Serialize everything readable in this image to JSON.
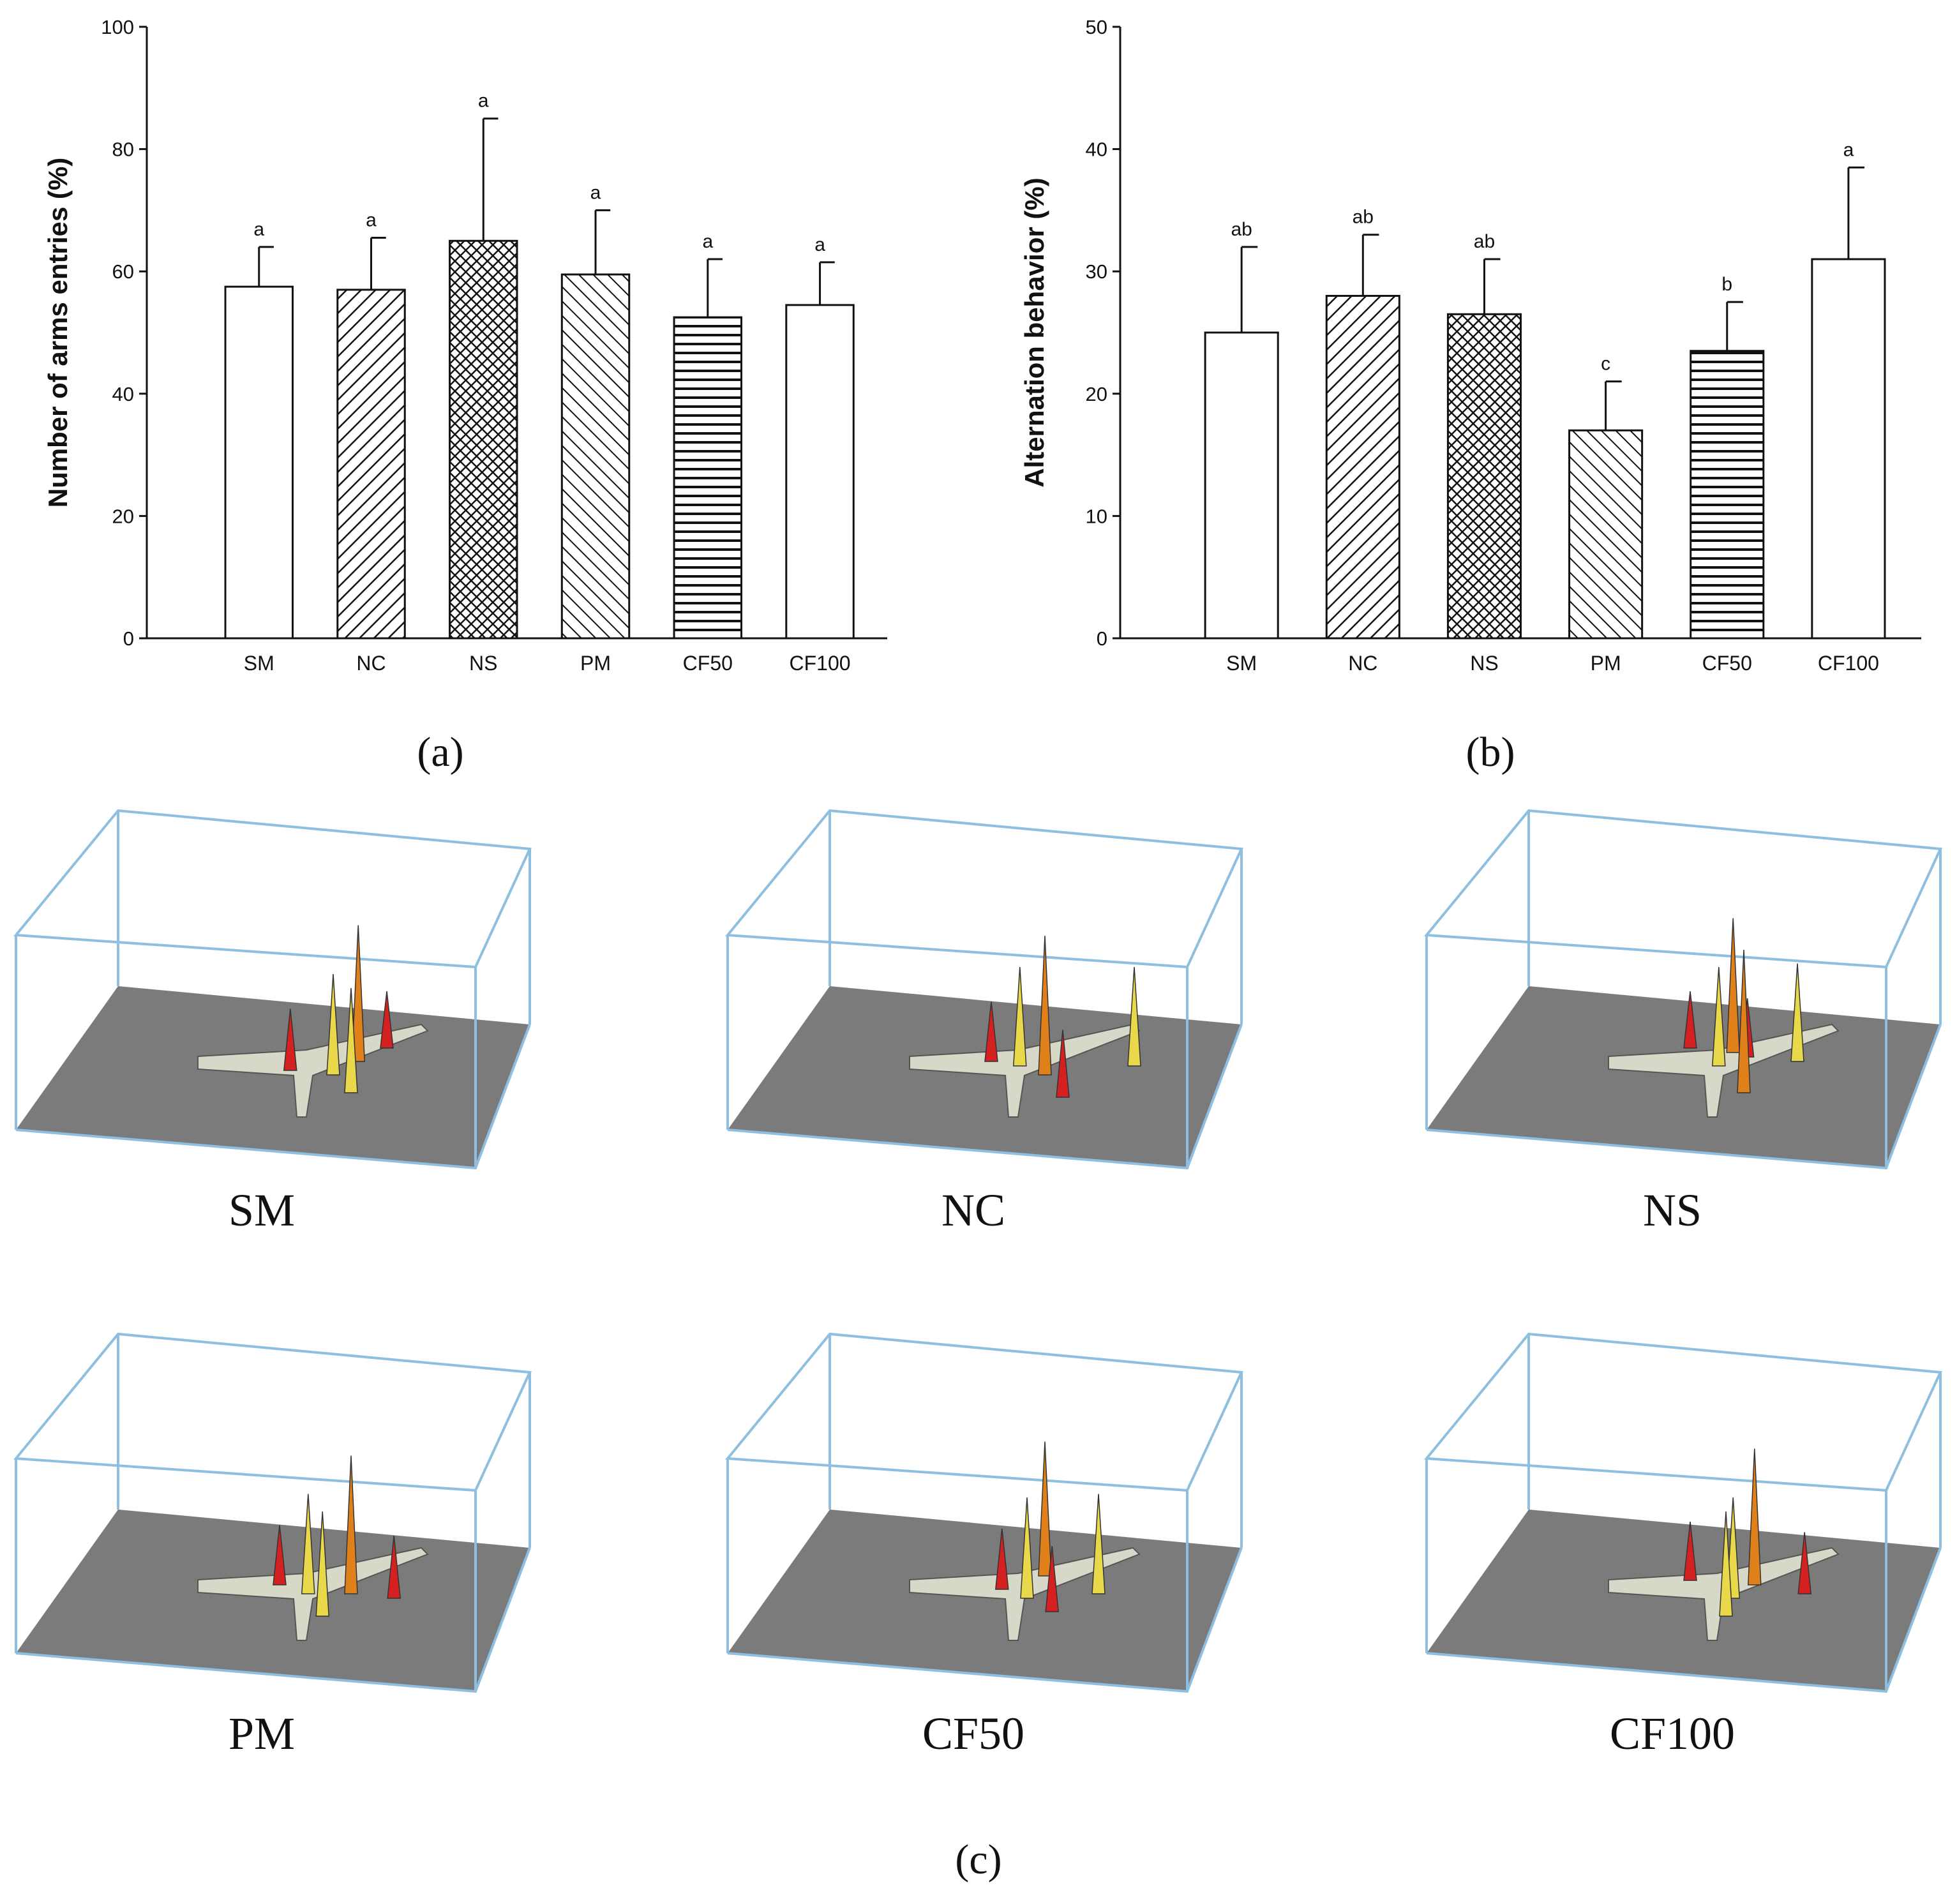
{
  "chart_data": [
    {
      "id": "a",
      "type": "bar",
      "panel_label": "(a)",
      "ylabel": "Number of arms entries (%)",
      "xlabel": "",
      "ylim": [
        0,
        100
      ],
      "yticks": [
        0,
        20,
        40,
        60,
        80,
        100
      ],
      "categories": [
        "SM",
        "NC",
        "NS",
        "PM",
        "CF50",
        "CF100"
      ],
      "values": [
        57.5,
        57,
        65,
        59.5,
        52.5,
        54.5
      ],
      "errors": [
        6.5,
        8.5,
        20,
        10.5,
        9.5,
        7
      ],
      "letters": [
        "a",
        "a",
        "a",
        "a",
        "a",
        "a"
      ],
      "patterns": [
        "open",
        "diag-up",
        "crosshatch",
        "diag-down",
        "horizontal",
        "open"
      ]
    },
    {
      "id": "b",
      "type": "bar",
      "panel_label": "(b)",
      "ylabel": "Alternation behavior (%)",
      "xlabel": "",
      "ylim": [
        0,
        50
      ],
      "yticks": [
        0,
        10,
        20,
        30,
        40,
        50
      ],
      "categories": [
        "SM",
        "NC",
        "NS",
        "PM",
        "CF50",
        "CF100"
      ],
      "values": [
        25,
        28,
        26.5,
        17,
        23.5,
        31
      ],
      "errors": [
        7,
        5,
        4.5,
        4,
        4,
        7.5
      ],
      "letters": [
        "ab",
        "ab",
        "ab",
        "c",
        "b",
        "a"
      ],
      "patterns": [
        "open",
        "diag-up",
        "crosshatch",
        "diag-down",
        "horizontal",
        "open"
      ]
    }
  ],
  "heatmaps": {
    "panel_label": "(c)",
    "items": [
      {
        "label": "SM",
        "peaks": [
          [
            0.33,
            0.55
          ],
          [
            0.45,
            0.6
          ],
          [
            0.52,
            0.45
          ],
          [
            0.6,
            0.3
          ],
          [
            0.5,
            0.8
          ]
        ]
      },
      {
        "label": "NC",
        "peaks": [
          [
            0.3,
            0.45
          ],
          [
            0.38,
            0.5
          ],
          [
            0.45,
            0.6
          ],
          [
            0.5,
            0.85
          ],
          [
            0.7,
            0.5
          ]
        ]
      },
      {
        "label": "NS",
        "peaks": [
          [
            0.3,
            0.3
          ],
          [
            0.38,
            0.5
          ],
          [
            0.42,
            0.35
          ],
          [
            0.46,
            0.4
          ],
          [
            0.6,
            0.45
          ],
          [
            0.45,
            0.8
          ]
        ]
      },
      {
        "label": "PM",
        "peaks": [
          [
            0.3,
            0.45
          ],
          [
            0.42,
            0.8
          ],
          [
            0.5,
            0.55
          ],
          [
            0.62,
            0.6
          ],
          [
            0.38,
            0.55
          ]
        ]
      },
      {
        "label": "CF50",
        "peaks": [
          [
            0.33,
            0.5
          ],
          [
            0.4,
            0.6
          ],
          [
            0.45,
            0.35
          ],
          [
            0.47,
            0.75
          ],
          [
            0.6,
            0.55
          ]
        ]
      },
      {
        "label": "CF100",
        "peaks": [
          [
            0.3,
            0.4
          ],
          [
            0.42,
            0.6
          ],
          [
            0.48,
            0.45
          ],
          [
            0.62,
            0.55
          ],
          [
            0.4,
            0.8
          ]
        ]
      }
    ]
  },
  "colors": {
    "axis": "#111111",
    "box": "#8fbfe0",
    "floor": "#7b7b7b",
    "peak_red": "#d42020",
    "peak_yellow": "#e8d84a",
    "peak_orange": "#e0801a"
  }
}
